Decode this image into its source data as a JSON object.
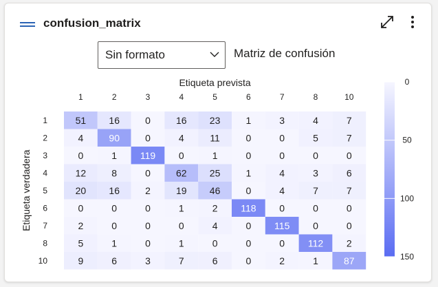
{
  "header": {
    "title": "confusion_matrix",
    "menu_icon": "hamburger-icon",
    "expand_icon": "expand-icon",
    "more_icon": "more-vertical-icon"
  },
  "controls": {
    "format_select_value": "Sin formato",
    "chart_caption": "Matriz de confusión"
  },
  "colors": {
    "scale_low": "#f6f6ff",
    "scale_high": "#5a6cf2",
    "text_dark": "#201f1e",
    "text_light": "#ffffff",
    "accent": "#2a63b4"
  },
  "chart_data": {
    "type": "heatmap",
    "xlabel": "Etiqueta prevista",
    "ylabel": "Etiqueta verdadera",
    "x_categories": [
      "1",
      "2",
      "3",
      "4",
      "5",
      "6",
      "7",
      "8",
      "10"
    ],
    "y_categories": [
      "1",
      "2",
      "3",
      "4",
      "5",
      "6",
      "7",
      "8",
      "10"
    ],
    "values": [
      [
        51,
        16,
        0,
        16,
        23,
        1,
        3,
        4,
        7
      ],
      [
        4,
        90,
        0,
        4,
        11,
        0,
        0,
        5,
        7
      ],
      [
        0,
        1,
        119,
        0,
        1,
        0,
        0,
        0,
        0
      ],
      [
        12,
        8,
        0,
        62,
        25,
        1,
        4,
        3,
        6
      ],
      [
        20,
        16,
        2,
        19,
        46,
        0,
        4,
        7,
        7
      ],
      [
        0,
        0,
        0,
        1,
        2,
        118,
        0,
        0,
        0
      ],
      [
        2,
        0,
        0,
        0,
        4,
        0,
        115,
        0,
        0
      ],
      [
        5,
        1,
        0,
        1,
        0,
        0,
        0,
        112,
        2
      ],
      [
        9,
        6,
        3,
        7,
        6,
        0,
        2,
        1,
        87
      ]
    ],
    "colorbar": {
      "min": 0,
      "max": 150,
      "ticks": [
        0,
        50,
        100,
        150
      ]
    }
  }
}
